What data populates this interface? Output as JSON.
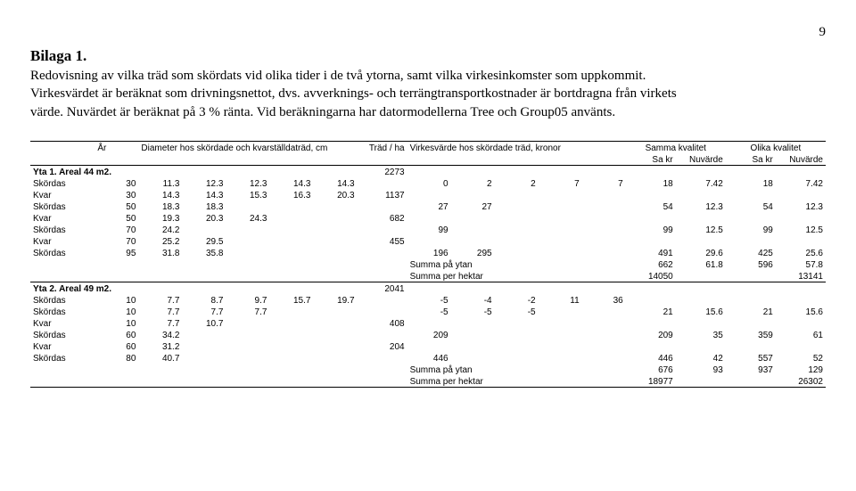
{
  "page_number": "9",
  "title": "Bilaga 1.",
  "paragraph": "Redovisning av vilka träd som skördats vid olika tider i de två ytorna, samt vilka virkesinkomster som uppkommit. Virkesvärdet är beräknat som drivningsnettot, dvs. avverknings- och terrängtransportkostnader är bortdragna från virkets värde. Nuvärdet är beräknat på 3 % ränta. Vid beräkningarna har datormodellerna Tree och Group05 använts.",
  "headers": {
    "ar": "År",
    "diam": "Diameter hos skördade och kvarställdaträd, cm",
    "trad_ha": "Träd / ha",
    "virk": "Virkesvärde hos skördade träd, kronor",
    "samma": "Samma kvalitet",
    "olika": "Olika kvalitet",
    "sakr": "Sa kr",
    "nuv": "Nuvärde"
  },
  "yta1_title": "Yta 1. Areal 44 m2.",
  "yta2_title": "Yta 2. Areal 49 m2.",
  "summa_ytan": "Summa på ytan",
  "summa_hekt": "Summa per hektar",
  "rows1": [
    {
      "label": "Skördas",
      "ar": "30",
      "d": [
        "11.3",
        "12.3",
        "12.3",
        "14.3",
        "14.3"
      ],
      "t": "",
      "v": [
        "0",
        "2",
        "2",
        "7",
        "7"
      ],
      "s": [
        "18",
        "7.42"
      ],
      "o": [
        "18",
        "7.42"
      ]
    },
    {
      "label": "Kvar",
      "ar": "30",
      "d": [
        "14.3",
        "14.3",
        "15.3",
        "16.3",
        "20.3"
      ],
      "t": "1137",
      "v": [
        "",
        "",
        "",
        "",
        ""
      ],
      "s": [
        "",
        ""
      ],
      "o": [
        "",
        ""
      ]
    },
    {
      "label": "Skördas",
      "ar": "50",
      "d": [
        "18.3",
        "18.3",
        "",
        "",
        ""
      ],
      "t": "",
      "v": [
        "27",
        "27",
        "",
        "",
        ""
      ],
      "s": [
        "54",
        "12.3"
      ],
      "o": [
        "54",
        "12.3"
      ]
    },
    {
      "label": "Kvar",
      "ar": "50",
      "d": [
        "19.3",
        "20.3",
        "24.3",
        "",
        ""
      ],
      "t": "682",
      "v": [
        "",
        "",
        "",
        "",
        ""
      ],
      "s": [
        "",
        ""
      ],
      "o": [
        "",
        ""
      ]
    },
    {
      "label": "Skördas",
      "ar": "70",
      "d": [
        "24.2",
        "",
        "",
        "",
        ""
      ],
      "t": "",
      "v": [
        "99",
        "",
        "",
        "",
        ""
      ],
      "s": [
        "99",
        "12.5"
      ],
      "o": [
        "99",
        "12.5"
      ]
    },
    {
      "label": "Kvar",
      "ar": "70",
      "d": [
        "25.2",
        "29.5",
        "",
        "",
        ""
      ],
      "t": "455",
      "v": [
        "",
        "",
        "",
        "",
        ""
      ],
      "s": [
        "",
        ""
      ],
      "o": [
        "",
        ""
      ]
    },
    {
      "label": "Skördas",
      "ar": "95",
      "d": [
        "31.8",
        "35.8",
        "",
        "",
        ""
      ],
      "t": "",
      "v": [
        "196",
        "295",
        "",
        "",
        ""
      ],
      "s": [
        "491",
        "29.6"
      ],
      "o": [
        "425",
        "25.6"
      ]
    }
  ],
  "yta1_init_t": "2273",
  "yta1_sum_ytan": {
    "s": [
      "662",
      "61.8"
    ],
    "o": [
      "596",
      "57.8"
    ]
  },
  "yta1_sum_hekt": {
    "s": [
      "14050",
      ""
    ],
    "o": [
      "",
      "13141"
    ]
  },
  "yta2_init_t": "2041",
  "rows2": [
    {
      "label": "Skördas",
      "ar": "10",
      "d": [
        "7.7",
        "8.7",
        "9.7",
        "15.7",
        "19.7"
      ],
      "t": "",
      "v": [
        "-5",
        "-4",
        "-2",
        "11",
        "36"
      ],
      "s": [
        "",
        ""
      ],
      "o": [
        "",
        ""
      ]
    },
    {
      "label": "Skördas",
      "ar": "10",
      "d": [
        "7.7",
        "7.7",
        "7.7",
        "",
        ""
      ],
      "t": "",
      "v": [
        "-5",
        "-5",
        "-5",
        "",
        ""
      ],
      "s": [
        "21",
        "15.6"
      ],
      "o": [
        "21",
        "15.6"
      ]
    },
    {
      "label": "Kvar",
      "ar": "10",
      "d": [
        "7.7",
        "10.7",
        "",
        "",
        ""
      ],
      "t": "408",
      "v": [
        "",
        "",
        "",
        "",
        ""
      ],
      "s": [
        "",
        ""
      ],
      "o": [
        "",
        ""
      ]
    },
    {
      "label": "Skördas",
      "ar": "60",
      "d": [
        "34.2",
        "",
        "",
        "",
        ""
      ],
      "t": "",
      "v": [
        "209",
        "",
        "",
        "",
        ""
      ],
      "s": [
        "209",
        "35"
      ],
      "o": [
        "359",
        "61"
      ]
    },
    {
      "label": "Kvar",
      "ar": "60",
      "d": [
        "31.2",
        "",
        "",
        "",
        ""
      ],
      "t": "204",
      "v": [
        "",
        "",
        "",
        "",
        ""
      ],
      "s": [
        "",
        ""
      ],
      "o": [
        "",
        ""
      ]
    },
    {
      "label": "Skördas",
      "ar": "80",
      "d": [
        "40.7",
        "",
        "",
        "",
        ""
      ],
      "t": "",
      "v": [
        "446",
        "",
        "",
        "",
        ""
      ],
      "s": [
        "446",
        "42"
      ],
      "o": [
        "557",
        "52"
      ]
    }
  ],
  "yta2_sum_ytan": {
    "s": [
      "676",
      "93"
    ],
    "o": [
      "937",
      "129"
    ]
  },
  "yta2_sum_hekt": {
    "s": [
      "18977",
      ""
    ],
    "o": [
      "",
      "26302"
    ]
  }
}
